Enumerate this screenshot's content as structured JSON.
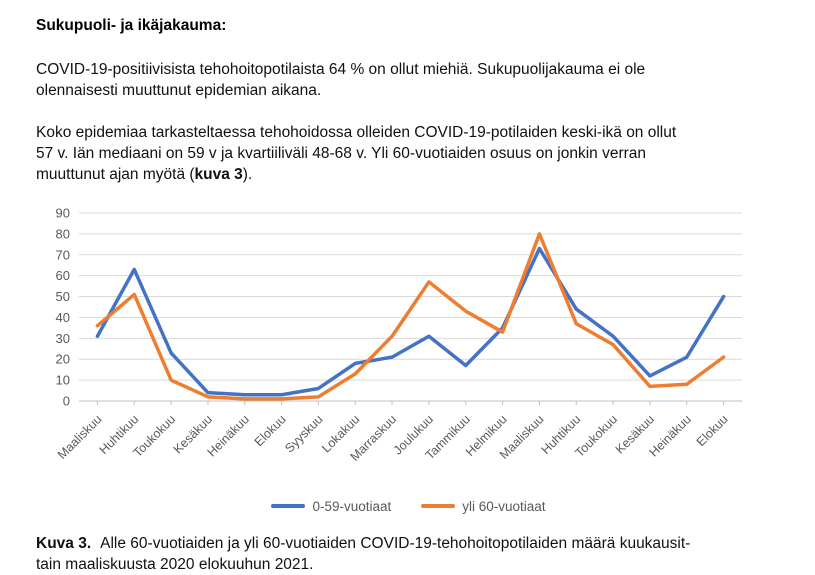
{
  "intro": {
    "heading": "Sukupuoli- ja ikäjakauma:",
    "para1_line1": "COVID-19-positiivisista tehohoitopotilaista 64 % on ollut miehiä. Sukupuolijakauma ei ole",
    "para1_line2": "olennaisesti muuttunut epidemian aikana.",
    "para2_line1": "Koko epidemiaa tarkasteltaessa tehohoidossa olleiden COVID-19-potilaiden keski-ikä on ollut",
    "para2_line2": "57 v. Iän mediaani on 59 v ja kvartiiliväli 48-68 v. Yli 60-vuotiaiden osuus on jonkin verran",
    "para2_line3_pre": "muuttunut ajan myötä (",
    "para2_line3_bold": "kuva 3",
    "para2_line3_post": ")."
  },
  "chart_data": {
    "type": "line",
    "categories": [
      "Maaliskuu",
      "Huhtikuu",
      "Toukokuu",
      "Kesäkuu",
      "Heinäkuu",
      "Elokuu",
      "Syyskuu",
      "Lokakuu",
      "Marraskuu",
      "Joulukuu",
      "Tammikuu",
      "Helmikuu",
      "Maaliskuu",
      "Huhtikuu",
      "Toukokuu",
      "Kesäkuu",
      "Heinäkuu",
      "Elokuu"
    ],
    "series": [
      {
        "name": "0-59-vuotiaat",
        "color": "#4472C4",
        "values": [
          31,
          63,
          23,
          4,
          3,
          3,
          6,
          18,
          21,
          31,
          17,
          35,
          73,
          44,
          31,
          12,
          21,
          50
        ]
      },
      {
        "name": "yli 60-vuotiaat",
        "color": "#ED7D31",
        "values": [
          36,
          51,
          10,
          2,
          1,
          1,
          2,
          13,
          31,
          57,
          43,
          33,
          80,
          37,
          27,
          7,
          8,
          21
        ]
      }
    ],
    "title": "",
    "xlabel": "",
    "ylabel": "",
    "ylim": [
      0,
      90
    ],
    "yticks": [
      0,
      10,
      20,
      30,
      40,
      50,
      60,
      70,
      80,
      90
    ],
    "grid": true,
    "legend_position": "bottom",
    "gridline_color": "#D9D9D9",
    "axis_color": "#BFBFBF",
    "tick_label_color": "#595959"
  },
  "caption": {
    "label": "Kuva 3.",
    "line1": "Alle 60-vuotiaiden ja yli 60-vuotiaiden COVID-19-tehohoitopotilaiden määrä kuukausit-",
    "line2": "tain maaliskuusta 2020 elokuuhun 2021."
  }
}
